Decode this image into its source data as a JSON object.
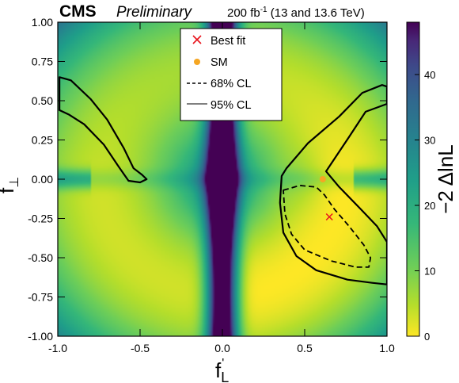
{
  "header": {
    "experiment": "CMS",
    "status": "Preliminary",
    "lumi_prefix": "200 fb",
    "lumi_exp": "-1",
    "lumi_suffix": " (13 and 13.6 TeV)"
  },
  "chart_data": {
    "type": "heatmap",
    "title": "",
    "xlabel": {
      "main": "f",
      "sup": "'",
      "sub": "L"
    },
    "ylabel": {
      "main": "f",
      "sub": "⊥"
    },
    "xlim": [
      -1.0,
      1.0
    ],
    "ylim": [
      -1.0,
      1.0
    ],
    "x_ticks": [
      "-1.0",
      "-0.5",
      "0.0",
      "0.5",
      "1.0"
    ],
    "x_tick_values": [
      -1.0,
      -0.5,
      0.0,
      0.5,
      1.0
    ],
    "y_ticks": [
      "1.00",
      "0.75",
      "0.50",
      "0.25",
      "0.00",
      "-0.25",
      "-0.50",
      "-0.75",
      "-1.00"
    ],
    "y_tick_values": [
      1.0,
      0.75,
      0.5,
      0.25,
      0.0,
      -0.25,
      -0.5,
      -0.75,
      -1.0
    ],
    "colorbar": {
      "label": "−2 ΔlnL",
      "range": [
        0,
        48
      ],
      "ticks": [
        "0",
        "10",
        "20",
        "30",
        "40"
      ],
      "tick_values": [
        0,
        10,
        20,
        30,
        40
      ],
      "colormap": "viridis_reversed"
    },
    "best_fit": {
      "x": 0.65,
      "y": -0.24,
      "color": "#e8141c"
    },
    "sm": {
      "x": 0.61,
      "y": 0.0,
      "color": "#f5a623"
    },
    "contours": {
      "cl68_left": [],
      "cl68_right": [
        [
          0.37,
          -0.07
        ],
        [
          0.47,
          -0.04
        ],
        [
          0.57,
          -0.05
        ],
        [
          0.62,
          -0.1
        ],
        [
          0.68,
          -0.19
        ],
        [
          0.77,
          -0.3
        ],
        [
          0.86,
          -0.42
        ],
        [
          0.9,
          -0.5
        ],
        [
          0.89,
          -0.56
        ],
        [
          0.81,
          -0.56
        ],
        [
          0.66,
          -0.52
        ],
        [
          0.5,
          -0.45
        ],
        [
          0.42,
          -0.35
        ],
        [
          0.38,
          -0.22
        ]
      ],
      "cl95_left": [
        [
          -0.99,
          0.65
        ],
        [
          -0.92,
          0.63
        ],
        [
          -0.8,
          0.51
        ],
        [
          -0.7,
          0.38
        ],
        [
          -0.6,
          0.2
        ],
        [
          -0.54,
          0.07
        ],
        [
          -0.49,
          0.03
        ],
        [
          -0.46,
          0.0
        ],
        [
          -0.5,
          -0.02
        ],
        [
          -0.57,
          -0.01
        ],
        [
          -0.63,
          0.08
        ],
        [
          -0.72,
          0.22
        ],
        [
          -0.84,
          0.35
        ],
        [
          -0.93,
          0.41
        ],
        [
          -0.99,
          0.44
        ]
      ],
      "cl95_right": [
        [
          0.36,
          0.02
        ],
        [
          0.39,
          0.07
        ],
        [
          0.52,
          0.23
        ],
        [
          0.71,
          0.4
        ],
        [
          0.85,
          0.55
        ],
        [
          0.97,
          0.6
        ],
        [
          1.0,
          0.59
        ],
        [
          1.0,
          0.48
        ],
        [
          0.87,
          0.43
        ],
        [
          0.77,
          0.27
        ],
        [
          0.63,
          0.05
        ],
        [
          0.71,
          -0.05
        ],
        [
          0.84,
          -0.19
        ],
        [
          0.94,
          -0.3
        ],
        [
          1.0,
          -0.4
        ],
        [
          1.0,
          -0.67
        ],
        [
          0.91,
          -0.66
        ],
        [
          0.76,
          -0.64
        ],
        [
          0.57,
          -0.58
        ],
        [
          0.45,
          -0.49
        ],
        [
          0.37,
          -0.34
        ],
        [
          0.35,
          -0.15
        ]
      ]
    },
    "legend": {
      "position": "top-center",
      "entries": [
        {
          "label": "Best fit",
          "marker": "x",
          "color": "#e8141c"
        },
        {
          "label": "SM",
          "marker": "dot",
          "color": "#f5a623"
        },
        {
          "label": "68% CL",
          "marker": "dashed"
        },
        {
          "label": "95% CL",
          "marker": "solid"
        }
      ]
    }
  }
}
